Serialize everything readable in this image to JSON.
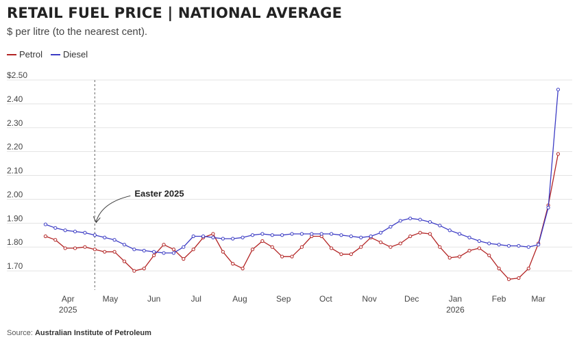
{
  "header": {
    "title": "RETAIL FUEL PRICE | NATIONAL AVERAGE",
    "subtitle": "$ per litre (to the nearest cent)."
  },
  "legend": [
    {
      "label": "Petrol",
      "color": "#b22222"
    },
    {
      "label": "Diesel",
      "color": "#3a3ac4"
    }
  ],
  "source": {
    "prefix": "Source:",
    "name": "Australian Institute of Petroleum"
  },
  "chart_data": {
    "type": "line",
    "ylim": [
      1.62,
      2.5
    ],
    "yticks": [
      {
        "value": 2.5,
        "label": "$2.50"
      },
      {
        "value": 2.4,
        "label": "2.40"
      },
      {
        "value": 2.3,
        "label": "2.30"
      },
      {
        "value": 2.2,
        "label": "2.20"
      },
      {
        "value": 2.1,
        "label": "2.10"
      },
      {
        "value": 2.0,
        "label": "2.00"
      },
      {
        "value": 1.9,
        "label": "1.90"
      },
      {
        "value": 1.8,
        "label": "1.80"
      },
      {
        "value": 1.7,
        "label": "1.70"
      }
    ],
    "xlim": [
      "2025-03-09",
      "2026-03-25"
    ],
    "xticks": [
      {
        "date": "2025-04-01",
        "label": "Apr",
        "sublabel": "2025"
      },
      {
        "date": "2025-05-01",
        "label": "May"
      },
      {
        "date": "2025-06-01",
        "label": "Jun"
      },
      {
        "date": "2025-07-01",
        "label": "Jul"
      },
      {
        "date": "2025-08-01",
        "label": "Aug"
      },
      {
        "date": "2025-09-01",
        "label": "Sep"
      },
      {
        "date": "2025-10-01",
        "label": "Oct"
      },
      {
        "date": "2025-11-01",
        "label": "Nov"
      },
      {
        "date": "2025-12-01",
        "label": "Dec"
      },
      {
        "date": "2026-01-01",
        "label": "Jan",
        "sublabel": "2026"
      },
      {
        "date": "2026-02-01",
        "label": "Feb"
      },
      {
        "date": "2026-03-01",
        "label": "Mar"
      }
    ],
    "annotation": {
      "label": "Easter 2025",
      "date": "2025-04-20",
      "target_value": 1.9
    },
    "grid": true,
    "legend_position": "top-left",
    "x": [
      "2025-03-16",
      "2025-03-23",
      "2025-03-30",
      "2025-04-06",
      "2025-04-13",
      "2025-04-20",
      "2025-04-27",
      "2025-05-04",
      "2025-05-11",
      "2025-05-18",
      "2025-05-25",
      "2025-06-01",
      "2025-06-08",
      "2025-06-15",
      "2025-06-22",
      "2025-06-29",
      "2025-07-06",
      "2025-07-13",
      "2025-07-20",
      "2025-07-27",
      "2025-08-03",
      "2025-08-10",
      "2025-08-17",
      "2025-08-24",
      "2025-08-31",
      "2025-09-07",
      "2025-09-14",
      "2025-09-21",
      "2025-09-28",
      "2025-10-05",
      "2025-10-12",
      "2025-10-19",
      "2025-10-26",
      "2025-11-02",
      "2025-11-09",
      "2025-11-16",
      "2025-11-23",
      "2025-11-30",
      "2025-12-07",
      "2025-12-14",
      "2025-12-21",
      "2025-12-28",
      "2026-01-04",
      "2026-01-11",
      "2026-01-18",
      "2026-01-25",
      "2026-02-01",
      "2026-02-08",
      "2026-02-15",
      "2026-02-22",
      "2026-03-01",
      "2026-03-08",
      "2026-03-15"
    ],
    "series": [
      {
        "name": "Petrol",
        "color": "#b22222",
        "values": [
          1.845,
          1.83,
          1.795,
          1.795,
          1.8,
          1.79,
          1.78,
          1.78,
          1.74,
          1.7,
          1.71,
          1.765,
          1.81,
          1.79,
          1.75,
          1.79,
          1.84,
          1.855,
          1.78,
          1.73,
          1.71,
          1.79,
          1.825,
          1.8,
          1.76,
          1.76,
          1.8,
          1.845,
          1.845,
          1.795,
          1.77,
          1.77,
          1.8,
          1.84,
          1.82,
          1.8,
          1.815,
          1.845,
          1.86,
          1.855,
          1.8,
          1.755,
          1.76,
          1.785,
          1.795,
          1.765,
          1.71,
          1.665,
          1.67,
          1.71,
          1.815,
          1.975,
          2.19
        ]
      },
      {
        "name": "Diesel",
        "color": "#3a3ac4",
        "values": [
          1.895,
          1.88,
          1.87,
          1.865,
          1.86,
          1.85,
          1.84,
          1.83,
          1.81,
          1.79,
          1.785,
          1.78,
          1.775,
          1.775,
          1.8,
          1.845,
          1.845,
          1.84,
          1.835,
          1.835,
          1.84,
          1.85,
          1.855,
          1.85,
          1.85,
          1.855,
          1.855,
          1.855,
          1.855,
          1.855,
          1.85,
          1.845,
          1.84,
          1.845,
          1.86,
          1.885,
          1.91,
          1.92,
          1.915,
          1.905,
          1.89,
          1.87,
          1.855,
          1.84,
          1.825,
          1.815,
          1.81,
          1.805,
          1.805,
          1.8,
          1.81,
          1.965,
          2.46
        ]
      }
    ]
  }
}
